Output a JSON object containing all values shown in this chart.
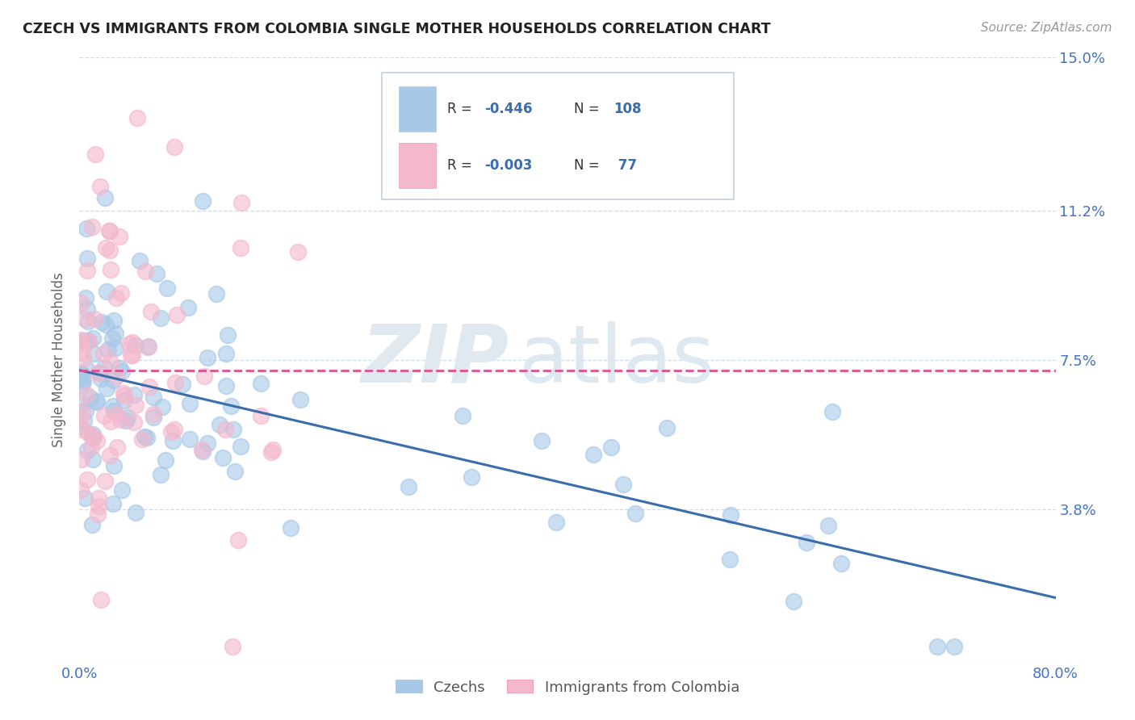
{
  "title": "CZECH VS IMMIGRANTS FROM COLOMBIA SINGLE MOTHER HOUSEHOLDS CORRELATION CHART",
  "source_text": "Source: ZipAtlas.com",
  "ylabel": "Single Mother Households",
  "xlim": [
    0.0,
    0.8
  ],
  "ylim": [
    0.0,
    0.15
  ],
  "ytick_positions": [
    0.0,
    0.038,
    0.075,
    0.112,
    0.15
  ],
  "ytick_labels": [
    "",
    "3.8%",
    "7.5%",
    "11.2%",
    "15.0%"
  ],
  "xtick_positions": [
    0.0,
    0.8
  ],
  "xtick_labels": [
    "0.0%",
    "80.0%"
  ],
  "legend_label1": "Czechs",
  "legend_label2": "Immigrants from Colombia",
  "blue_scatter_color": "#a8c8e8",
  "pink_scatter_color": "#f4b8cc",
  "blue_line_color": "#3a6dab",
  "pink_line_color": "#e05090",
  "tick_color": "#4472c4",
  "ylabel_color": "#666666",
  "title_color": "#222222",
  "source_color": "#999999",
  "grid_color": "#c8d8e8",
  "background_color": "#ffffff",
  "watermark_zip_color": "#e0e8f0",
  "watermark_atlas_color": "#dde8f0",
  "legend_box_color": "#e8f0f8",
  "legend_text_color": "#333333",
  "legend_value_color": "#3a6dab"
}
